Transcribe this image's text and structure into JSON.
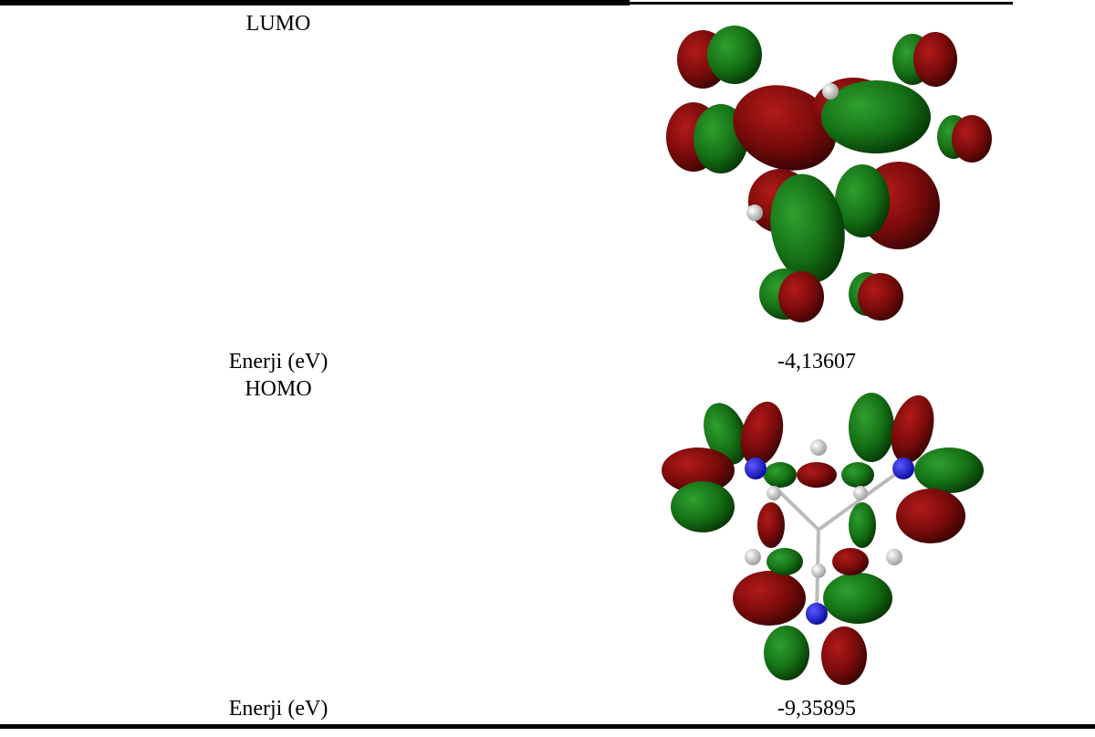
{
  "table": {
    "rows": [
      [
        "LUMO"
      ],
      [
        "Enerji (eV)",
        "-4,13607"
      ],
      [
        "HOMO"
      ],
      [
        "Enerji (eV)",
        "-9,35895"
      ]
    ]
  }
}
